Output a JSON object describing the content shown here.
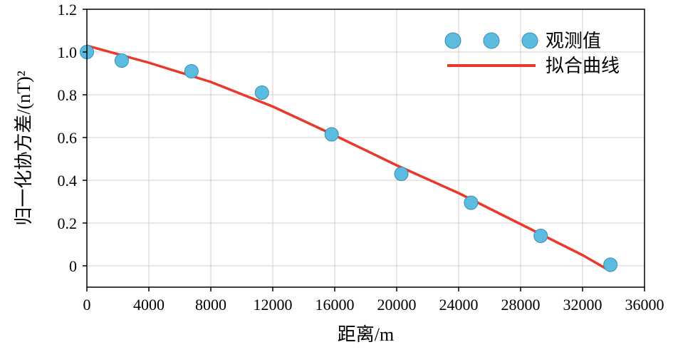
{
  "chart_data": {
    "type": "scatter",
    "xlabel": "距离/m",
    "ylabel": "归一化协方差/(nT)²",
    "xlim": [
      0,
      36000
    ],
    "ylim": [
      -0.1,
      1.2
    ],
    "x_ticks": [
      "0",
      "4000",
      "8000",
      "12000",
      "16000",
      "20000",
      "24000",
      "28000",
      "32000",
      "36000"
    ],
    "y_ticks": [
      "0",
      "0.2",
      "0.4",
      "0.6",
      "0.8",
      "1.0",
      "1.2"
    ],
    "grid": true,
    "legend": "top-right",
    "series": [
      {
        "name": "观测值",
        "kind": "scatter",
        "color": "#5bbcdf",
        "points": [
          [
            0,
            1.0
          ],
          [
            2250,
            0.96
          ],
          [
            6750,
            0.91
          ],
          [
            11300,
            0.81
          ],
          [
            15800,
            0.615
          ],
          [
            20300,
            0.43
          ],
          [
            24800,
            0.295
          ],
          [
            29300,
            0.14
          ],
          [
            33800,
            0.005
          ]
        ]
      },
      {
        "name": "拟合曲线",
        "kind": "line",
        "color": "#e8392b",
        "points": [
          [
            0,
            1.03
          ],
          [
            4000,
            0.95
          ],
          [
            8000,
            0.86
          ],
          [
            12000,
            0.745
          ],
          [
            16000,
            0.61
          ],
          [
            20000,
            0.47
          ],
          [
            24000,
            0.34
          ],
          [
            28000,
            0.195
          ],
          [
            32000,
            0.05
          ],
          [
            33800,
            -0.025
          ]
        ]
      }
    ]
  }
}
